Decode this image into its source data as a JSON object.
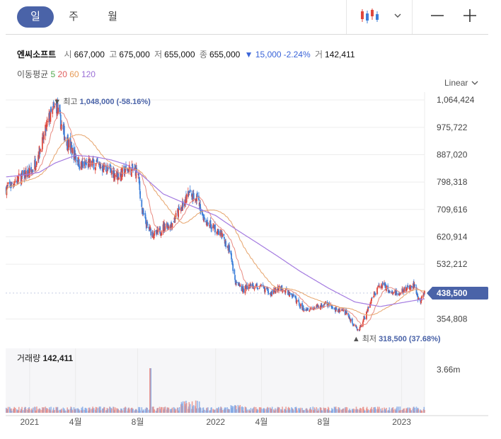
{
  "tabs": [
    {
      "label": "일",
      "active": true
    },
    {
      "label": "주",
      "active": false
    },
    {
      "label": "월",
      "active": false
    }
  ],
  "toolbar": {
    "chart_type_icon": "candlestick-icon",
    "dropdown_icon": "chevron-down-icon",
    "zoom_out_icon": "minus-icon",
    "zoom_in_icon": "plus-icon"
  },
  "stock": {
    "name": "엔씨소프트",
    "open_label": "시",
    "open": "667,000",
    "high_label": "고",
    "high": "675,000",
    "low_label": "저",
    "low": "655,000",
    "close_label": "종",
    "close": "655,000",
    "change": "▼ 15,000",
    "change_pct": "-2.24%",
    "volume_label": "거",
    "volume": "142,411"
  },
  "ma": {
    "label": "이동평균",
    "periods": [
      {
        "value": "5",
        "color": "#52a84e"
      },
      {
        "value": "20",
        "color": "#e05d5d"
      },
      {
        "value": "60",
        "color": "#e69a55"
      },
      {
        "value": "120",
        "color": "#9b6fd6"
      }
    ]
  },
  "scale_mode": "Linear",
  "colors": {
    "up": "#e0473c",
    "down": "#3d7fd9",
    "accent": "#4a63a8",
    "ma20": "#e88a80",
    "ma60": "#e6a36a",
    "ma120": "#a47be0"
  },
  "chart_data": {
    "type": "candlestick",
    "y_ticks": [
      "1,064,424",
      "975,722",
      "887,020",
      "798,318",
      "709,616",
      "620,914",
      "532,212",
      "354,808"
    ],
    "ylim": [
      310000,
      1090000
    ],
    "x_ticks": [
      "2021",
      "4월",
      "8월",
      "2022",
      "4월",
      "8월",
      "2023"
    ],
    "current_price_label": "438,500",
    "max_annotation": {
      "prefix": "최고",
      "value": "1,048,000",
      "pct": "(-58.16%)"
    },
    "min_annotation": {
      "prefix": "최저",
      "value": "318,500",
      "pct": "(37.68%)"
    },
    "price_anchors": [
      [
        "2020-11-15",
        775000
      ],
      [
        "2020-12-10",
        810000
      ],
      [
        "2021-01-05",
        830000
      ],
      [
        "2021-01-25",
        920000
      ],
      [
        "2021-02-08",
        1005000
      ],
      [
        "2021-02-22",
        1048000
      ],
      [
        "2021-03-08",
        960000
      ],
      [
        "2021-03-25",
        900000
      ],
      [
        "2021-04-12",
        850000
      ],
      [
        "2021-05-05",
        860000
      ],
      [
        "2021-06-01",
        840000
      ],
      [
        "2021-06-25",
        820000
      ],
      [
        "2021-07-12",
        840000
      ],
      [
        "2021-08-01",
        835000
      ],
      [
        "2021-08-10",
        700000
      ],
      [
        "2021-08-20",
        650000
      ],
      [
        "2021-09-05",
        625000
      ],
      [
        "2021-09-25",
        660000
      ],
      [
        "2021-10-05",
        660000
      ],
      [
        "2021-11-10",
        760000
      ],
      [
        "2021-11-25",
        745000
      ],
      [
        "2021-12-10",
        680000
      ],
      [
        "2022-01-10",
        630000
      ],
      [
        "2022-01-28",
        580000
      ],
      [
        "2022-02-10",
        465000
      ],
      [
        "2022-02-25",
        450000
      ],
      [
        "2022-03-10",
        465000
      ],
      [
        "2022-04-05",
        455000
      ],
      [
        "2022-04-20",
        440000
      ],
      [
        "2022-05-10",
        455000
      ],
      [
        "2022-06-01",
        430000
      ],
      [
        "2022-06-20",
        390000
      ],
      [
        "2022-07-15",
        390000
      ],
      [
        "2022-08-05",
        405000
      ],
      [
        "2022-08-25",
        385000
      ],
      [
        "2022-09-15",
        375000
      ],
      [
        "2022-09-30",
        330000
      ],
      [
        "2022-10-10",
        322000
      ],
      [
        "2022-10-25",
        380000
      ],
      [
        "2022-11-10",
        440000
      ],
      [
        "2022-11-25",
        470000
      ],
      [
        "2022-12-10",
        440000
      ],
      [
        "2022-12-25",
        440000
      ],
      [
        "2023-01-10",
        450000
      ],
      [
        "2023-01-25",
        465000
      ],
      [
        "2023-02-05",
        410000
      ],
      [
        "2023-02-15",
        438500
      ]
    ],
    "ma120_anchors": [
      [
        "2020-11-15",
        815000
      ],
      [
        "2020-12-15",
        820000
      ],
      [
        "2021-01-20",
        830000
      ],
      [
        "2021-02-20",
        860000
      ],
      [
        "2021-04-01",
        885000
      ],
      [
        "2021-05-10",
        880000
      ],
      [
        "2021-06-10",
        870000
      ],
      [
        "2021-07-10",
        855000
      ],
      [
        "2021-08-10",
        820000
      ],
      [
        "2021-09-20",
        760000
      ],
      [
        "2021-11-01",
        730000
      ],
      [
        "2022-01-01",
        690000
      ],
      [
        "2022-02-10",
        645000
      ],
      [
        "2022-03-20",
        605000
      ],
      [
        "2022-05-01",
        560000
      ],
      [
        "2022-06-15",
        510000
      ],
      [
        "2022-08-10",
        455000
      ],
      [
        "2022-10-01",
        410000
      ],
      [
        "2022-11-20",
        395000
      ],
      [
        "2023-01-10",
        410000
      ],
      [
        "2023-02-15",
        420000
      ]
    ],
    "volume_max_label": "3.66m",
    "volume_title": "거래량",
    "volume_value": "142,411"
  }
}
